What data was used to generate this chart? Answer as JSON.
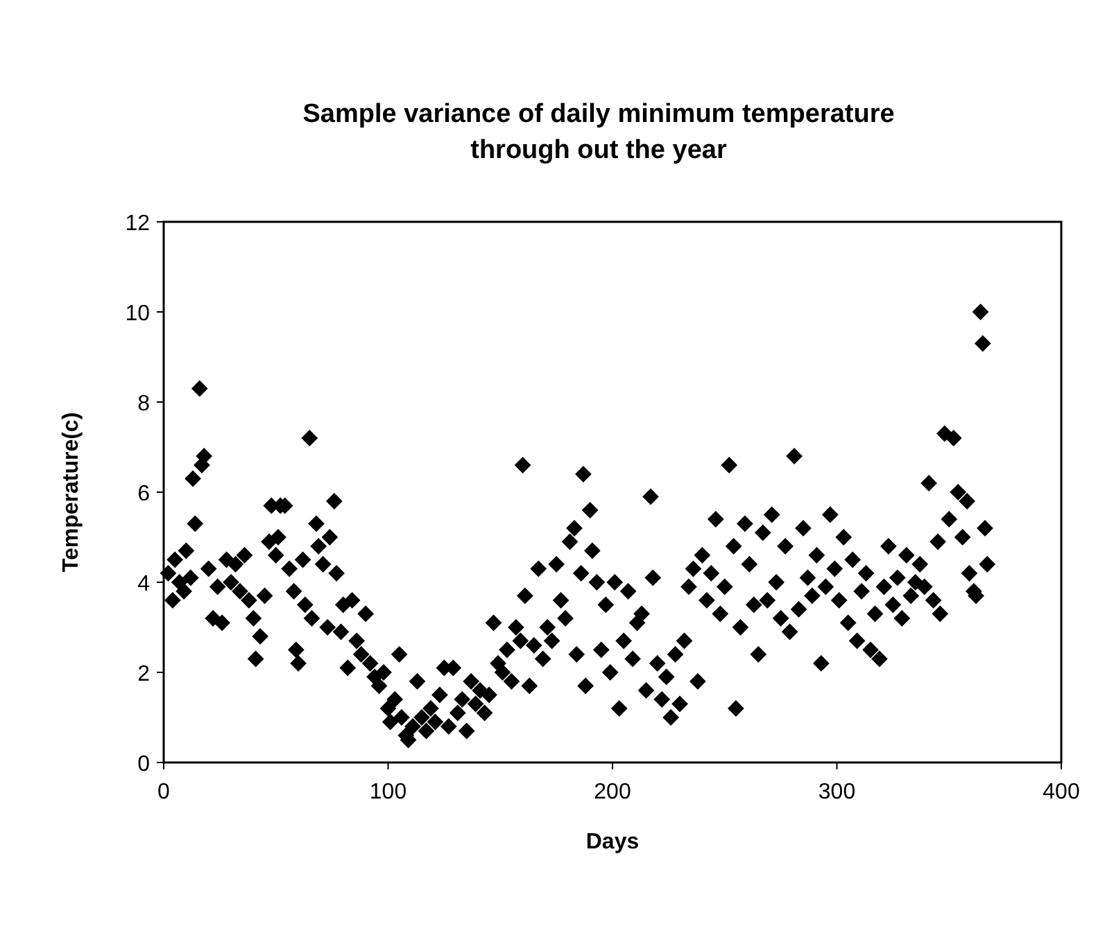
{
  "chart_data": {
    "type": "scatter",
    "title": "Sample variance of daily minimum temperature through out the year",
    "xlabel": "Days",
    "ylabel": "Temperature(c)",
    "xlim": [
      0,
      400
    ],
    "xticks": [
      0,
      100,
      200,
      300,
      400
    ],
    "ylim": [
      0,
      12
    ],
    "yticks": [
      0,
      2,
      4,
      6,
      8,
      10,
      12
    ],
    "grid": false,
    "marker": "diamond",
    "series": [
      {
        "color": "#000000",
        "x": [
          2,
          4,
          5,
          7,
          9,
          10,
          12,
          13,
          14,
          16,
          17,
          18,
          20,
          22,
          24,
          26,
          28,
          30,
          32,
          34,
          36,
          38,
          40,
          41,
          43,
          45,
          47,
          48,
          50,
          51,
          52,
          54,
          56,
          58,
          59,
          60,
          62,
          63,
          65,
          66,
          68,
          69,
          71,
          73,
          74,
          76,
          77,
          79,
          80,
          82,
          84,
          86,
          88,
          90,
          92,
          94,
          96,
          98,
          100,
          101,
          103,
          105,
          106,
          108,
          109,
          111,
          113,
          115,
          117,
          119,
          121,
          123,
          125,
          127,
          129,
          131,
          133,
          135,
          137,
          139,
          141,
          143,
          145,
          147,
          149,
          151,
          153,
          155,
          157,
          159,
          160,
          161,
          163,
          165,
          167,
          169,
          171,
          173,
          175,
          177,
          179,
          181,
          183,
          184,
          186,
          187,
          188,
          190,
          191,
          193,
          195,
          197,
          199,
          201,
          203,
          205,
          207,
          209,
          211,
          213,
          215,
          217,
          218,
          220,
          222,
          224,
          226,
          228,
          230,
          232,
          234,
          236,
          238,
          240,
          242,
          244,
          246,
          248,
          250,
          252,
          254,
          255,
          257,
          259,
          261,
          263,
          265,
          267,
          269,
          271,
          273,
          275,
          277,
          279,
          281,
          283,
          285,
          287,
          289,
          291,
          293,
          295,
          297,
          299,
          301,
          303,
          305,
          307,
          309,
          311,
          313,
          315,
          317,
          319,
          321,
          323,
          325,
          327,
          329,
          331,
          333,
          335,
          337,
          339,
          341,
          343,
          345,
          346,
          348,
          350,
          352,
          354,
          356,
          358,
          359,
          361,
          362,
          364,
          365,
          366,
          367
        ],
        "values": [
          4.2,
          3.6,
          4.5,
          4.0,
          3.8,
          4.7,
          4.1,
          6.3,
          5.3,
          8.3,
          6.6,
          6.8,
          4.3,
          3.2,
          3.9,
          3.1,
          4.5,
          4.0,
          4.4,
          3.8,
          4.6,
          3.6,
          3.2,
          2.3,
          2.8,
          3.7,
          4.9,
          5.7,
          4.6,
          5.0,
          5.7,
          5.7,
          4.3,
          3.8,
          2.5,
          2.2,
          4.5,
          3.5,
          7.2,
          3.2,
          5.3,
          4.8,
          4.4,
          3.0,
          5.0,
          5.8,
          4.2,
          2.9,
          3.5,
          2.1,
          3.6,
          2.7,
          2.4,
          3.3,
          2.2,
          1.9,
          1.7,
          2.0,
          1.2,
          0.9,
          1.4,
          2.4,
          1.0,
          0.6,
          0.5,
          0.8,
          1.8,
          1.0,
          0.7,
          1.2,
          0.9,
          1.5,
          2.1,
          0.8,
          2.1,
          1.1,
          1.4,
          0.7,
          1.8,
          1.3,
          1.6,
          1.1,
          1.5,
          3.1,
          2.2,
          2.0,
          2.5,
          1.8,
          3.0,
          2.7,
          6.6,
          3.7,
          1.7,
          2.6,
          4.3,
          2.3,
          3.0,
          2.7,
          4.4,
          3.6,
          3.2,
          4.9,
          5.2,
          2.4,
          4.2,
          6.4,
          1.7,
          5.6,
          4.7,
          4.0,
          2.5,
          3.5,
          2.0,
          4.0,
          1.2,
          2.7,
          3.8,
          2.3,
          3.1,
          3.3,
          1.6,
          5.9,
          4.1,
          2.2,
          1.4,
          1.9,
          1.0,
          2.4,
          1.3,
          2.7,
          3.9,
          4.3,
          1.8,
          4.6,
          3.6,
          4.2,
          5.4,
          3.3,
          3.9,
          6.6,
          4.8,
          1.2,
          3.0,
          5.3,
          4.4,
          3.5,
          2.4,
          5.1,
          3.6,
          5.5,
          4.0,
          3.2,
          4.8,
          2.9,
          6.8,
          3.4,
          5.2,
          4.1,
          3.7,
          4.6,
          2.2,
          3.9,
          5.5,
          4.3,
          3.6,
          5.0,
          3.1,
          4.5,
          2.7,
          3.8,
          4.2,
          2.5,
          3.3,
          2.3,
          3.9,
          4.8,
          3.5,
          4.1,
          3.2,
          4.6,
          3.7,
          4.0,
          4.4,
          3.9,
          6.2,
          3.6,
          4.9,
          3.3,
          7.3,
          5.4,
          7.2,
          6.0,
          5.0,
          5.8,
          4.2,
          3.8,
          3.7,
          10.0,
          9.3,
          5.2,
          4.4
        ]
      }
    ]
  }
}
